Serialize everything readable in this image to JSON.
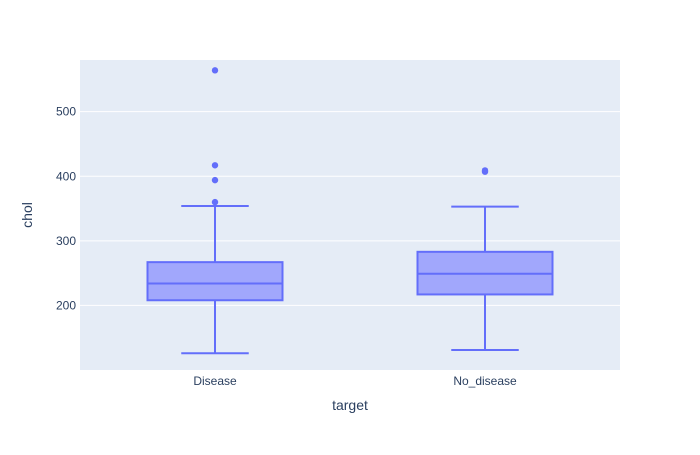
{
  "chart_data": {
    "type": "box",
    "xlabel": "target",
    "ylabel": "chol",
    "categories": [
      "Disease",
      "No_disease"
    ],
    "ylim": [
      100,
      580
    ],
    "yticks": [
      200,
      300,
      400,
      500
    ],
    "grid": true,
    "boxes": [
      {
        "category": "Disease",
        "lower_fence": 126,
        "q1": 208,
        "median": 234,
        "q3": 267,
        "upper_fence": 354,
        "outliers": [
          360,
          394,
          417,
          564
        ]
      },
      {
        "category": "No_disease",
        "lower_fence": 131,
        "q1": 217,
        "median": 249,
        "q3": 283,
        "upper_fence": 353,
        "outliers": [
          407,
          409
        ]
      }
    ],
    "colors": {
      "plot_bg": "#e5ecf6",
      "grid": "#ffffff",
      "box_line": "#636efa",
      "box_fill": "#a1a7fc",
      "text": "#2a3f5f"
    }
  }
}
